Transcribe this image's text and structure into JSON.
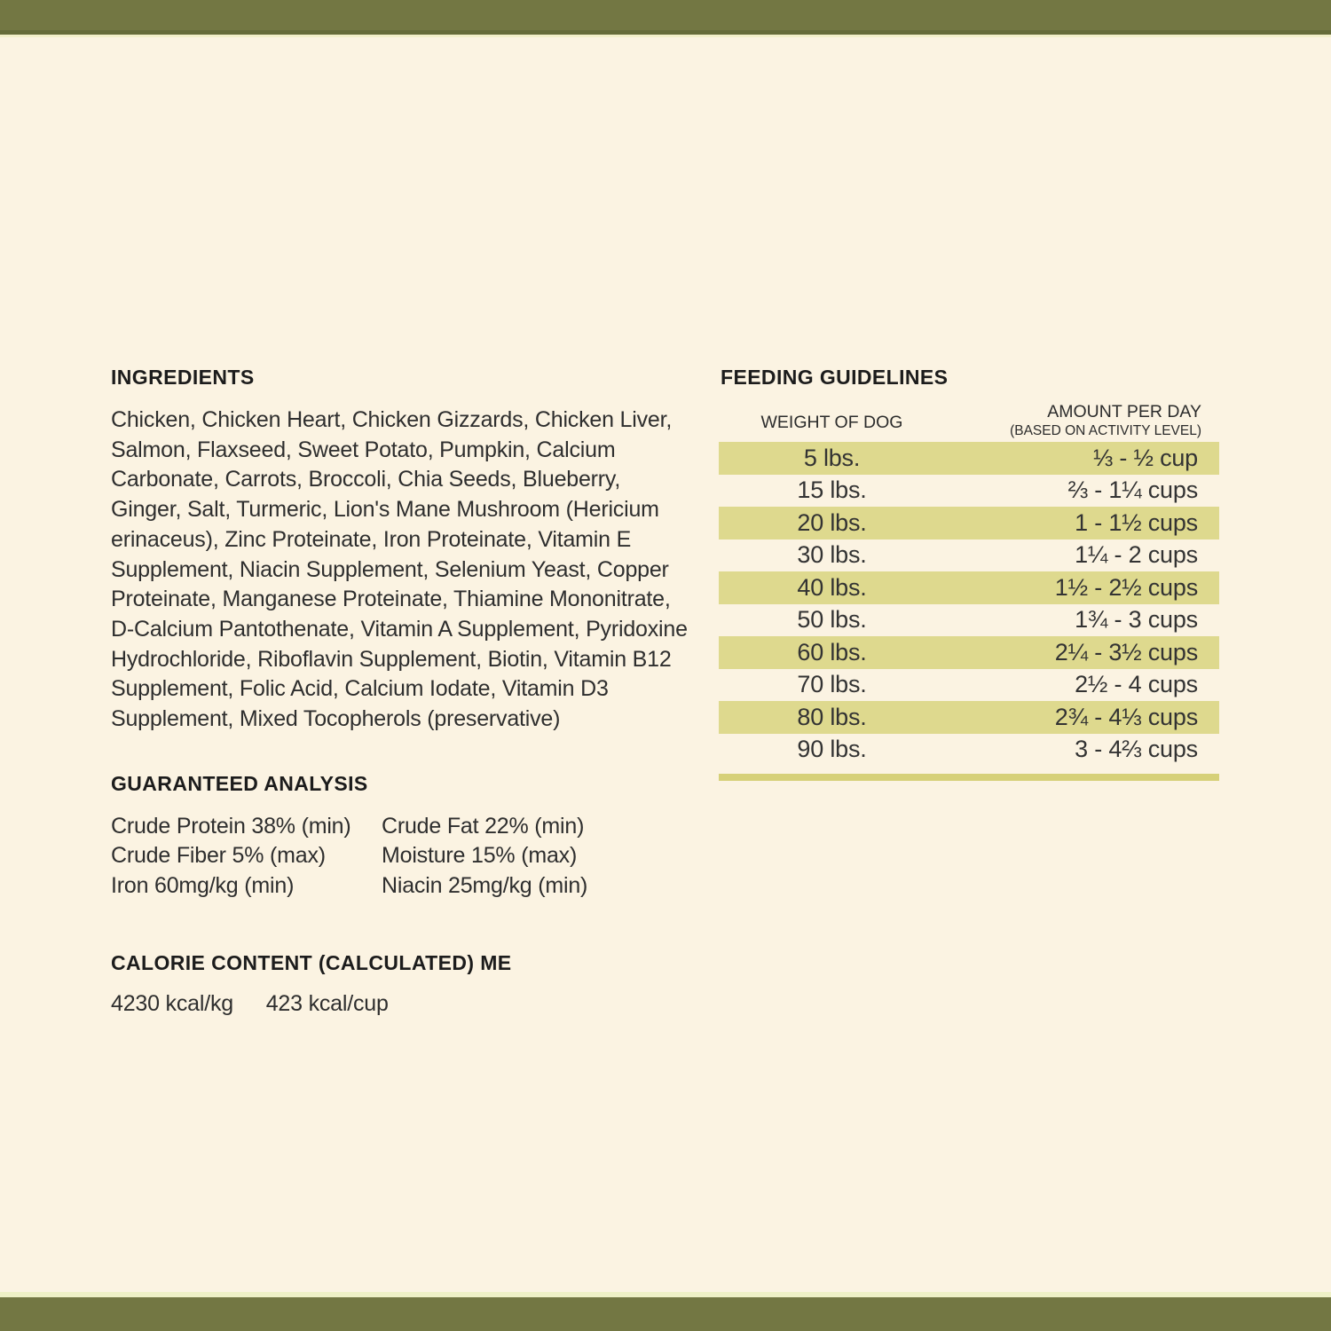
{
  "ingredients": {
    "heading": "INGREDIENTS",
    "text": "Chicken, Chicken Heart, Chicken Gizzards, Chicken Liver, Salmon, Flaxseed, Sweet Potato, Pumpkin, Calcium Carbonate, Carrots, Broccoli, Chia Seeds, Blueberry, Ginger, Salt, Turmeric, Lion's Mane Mushroom (Hericium erinaceus), Zinc Proteinate, Iron Proteinate, Vitamin E Supplement, Niacin Supplement, Selenium Yeast, Copper Proteinate, Manganese Proteinate, Thiamine Mononitrate, D-Calcium Pantothenate, Vitamin A Supplement, Pyridoxine Hydrochloride, Riboflavin Supplement, Biotin, Vitamin B12 Supplement, Folic Acid, Calcium Iodate, Vitamin D3 Supplement, Mixed Tocopherols (preservative)"
  },
  "guaranteed_analysis": {
    "heading": "GUARANTEED ANALYSIS",
    "rows": [
      {
        "left": "Crude Protein 38% (min)",
        "right": "Crude Fat 22% (min)"
      },
      {
        "left": "Crude Fiber 5% (max)",
        "right": "Moisture 15% (max)"
      },
      {
        "left": "Iron 60mg/kg (min)",
        "right": "Niacin 25mg/kg (min)"
      }
    ]
  },
  "calorie_content": {
    "heading": "CALORIE CONTENT (CALCULATED) ME",
    "kcal_per_kg": "4230 kcal/kg",
    "kcal_per_cup": "423 kcal/cup"
  },
  "feeding_guidelines": {
    "heading": "FEEDING GUIDELINES",
    "weight_header": "WEIGHT OF DOG",
    "amount_header": "AMOUNT PER DAY",
    "amount_subheader": "(BASED ON ACTIVITY LEVEL)",
    "rows": [
      {
        "weight": "5 lbs.",
        "amount": "⅓ - ½ cup"
      },
      {
        "weight": "15 lbs.",
        "amount": "⅔ - 1¼ cups"
      },
      {
        "weight": "20 lbs.",
        "amount": "1 - 1½ cups"
      },
      {
        "weight": "30 lbs.",
        "amount": "1¼ - 2 cups"
      },
      {
        "weight": "40 lbs.",
        "amount": "1½ - 2½ cups"
      },
      {
        "weight": "50 lbs.",
        "amount": "1¾ - 3 cups"
      },
      {
        "weight": "60 lbs.",
        "amount": "2¼ - 3½ cups"
      },
      {
        "weight": "70 lbs.",
        "amount": "2½ - 4 cups"
      },
      {
        "weight": "80 lbs.",
        "amount": "2¾ - 4⅓ cups"
      },
      {
        "weight": "90 lbs.",
        "amount": "3 - 4⅔ cups"
      }
    ]
  },
  "colors": {
    "background": "#fbf3e2",
    "band": "#737743",
    "band_edge_dark": "#656b3a",
    "band_edge_pale": "#f2efca",
    "row_highlight": "#ded98e",
    "table_end_strip": "#d6d078",
    "text": "#2e2e2e"
  }
}
